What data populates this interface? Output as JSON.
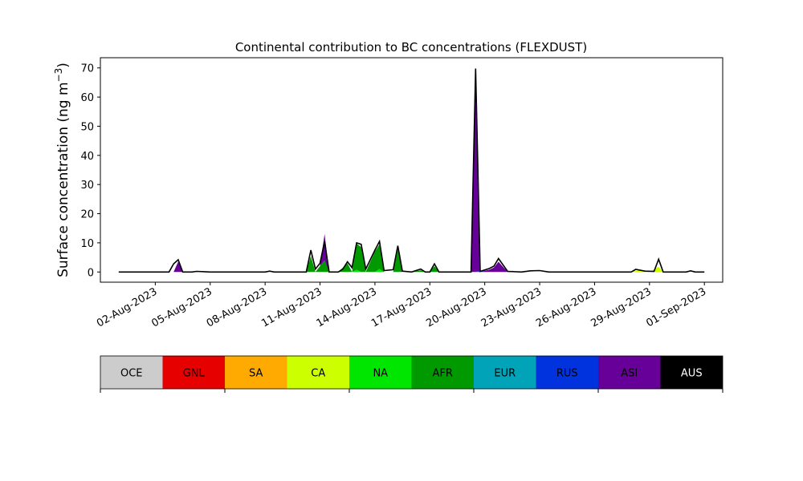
{
  "chart_data": {
    "type": "area",
    "title": "Continental contribution to BC concentrations (FLEXDUST)",
    "ylabel": "Surface concentration (ng m",
    "ylabel_unit_exponent": "−3",
    "ylabel_close": ")",
    "xlabel": "",
    "ylim": [
      -3.5,
      73.5
    ],
    "y_ticks": [
      0,
      10,
      20,
      30,
      40,
      50,
      60,
      70
    ],
    "x_range": [
      "2023-07-30",
      "2023-09-02"
    ],
    "x_ticks": [
      {
        "date": "2023-08-02",
        "label": "02-Aug-2023"
      },
      {
        "date": "2023-08-05",
        "label": "05-Aug-2023"
      },
      {
        "date": "2023-08-08",
        "label": "08-Aug-2023"
      },
      {
        "date": "2023-08-11",
        "label": "11-Aug-2023"
      },
      {
        "date": "2023-08-14",
        "label": "14-Aug-2023"
      },
      {
        "date": "2023-08-17",
        "label": "17-Aug-2023"
      },
      {
        "date": "2023-08-20",
        "label": "20-Aug-2023"
      },
      {
        "date": "2023-08-23",
        "label": "23-Aug-2023"
      },
      {
        "date": "2023-08-26",
        "label": "26-Aug-2023"
      },
      {
        "date": "2023-08-29",
        "label": "29-Aug-2023"
      },
      {
        "date": "2023-09-01",
        "label": "01-Sep-2023"
      }
    ],
    "grid": false,
    "legend": {
      "placement": "below",
      "entries": [
        {
          "name": "OCE",
          "color": "#cccccc",
          "text_color": "#000000"
        },
        {
          "name": "GNL",
          "color": "#e60000",
          "text_color": "#000000"
        },
        {
          "name": "SA",
          "color": "#ffaa00",
          "text_color": "#000000"
        },
        {
          "name": "CA",
          "color": "#ccff00",
          "text_color": "#000000"
        },
        {
          "name": "NA",
          "color": "#00e600",
          "text_color": "#000000"
        },
        {
          "name": "AFR",
          "color": "#009900",
          "text_color": "#000000"
        },
        {
          "name": "EUR",
          "color": "#00a3b8",
          "text_color": "#000000"
        },
        {
          "name": "RUS",
          "color": "#0033dd",
          "text_color": "#000000"
        },
        {
          "name": "ASI",
          "color": "#660099",
          "text_color": "#000000"
        },
        {
          "name": "AUS",
          "color": "#000000",
          "text_color": "#ffffff"
        }
      ]
    },
    "series": [
      {
        "name": "CA",
        "points": [
          [
            "2023-07-31",
            0
          ],
          [
            "2023-08-28",
            0
          ],
          [
            "2023-08-28 12:00",
            0.7
          ],
          [
            "2023-08-29",
            0
          ],
          [
            "2023-08-29 12:00",
            1.8
          ],
          [
            "2023-08-29 18:00",
            0
          ],
          [
            "2023-09-01",
            0
          ]
        ]
      },
      {
        "name": "NA",
        "points": [
          [
            "2023-07-31",
            0
          ],
          [
            "2023-08-12 18:00",
            0
          ],
          [
            "2023-08-13",
            0.8
          ],
          [
            "2023-08-13 06:00",
            0
          ],
          [
            "2023-08-14",
            0
          ],
          [
            "2023-08-14 06:00",
            1.0
          ],
          [
            "2023-08-14 12:00",
            0
          ],
          [
            "2023-09-01",
            0
          ]
        ]
      },
      {
        "name": "AFR",
        "points": [
          [
            "2023-07-31",
            0
          ],
          [
            "2023-08-10 06:00",
            0
          ],
          [
            "2023-08-10 12:00",
            5.5
          ],
          [
            "2023-08-10 18:00",
            0
          ],
          [
            "2023-08-11 06:00",
            4.0
          ],
          [
            "2023-08-11 12:00",
            0
          ],
          [
            "2023-08-12",
            0
          ],
          [
            "2023-08-12 12:00",
            3.0
          ],
          [
            "2023-08-12 18:00",
            0
          ],
          [
            "2023-08-13",
            9.0
          ],
          [
            "2023-08-13 06:00",
            8.5
          ],
          [
            "2023-08-13 12:00",
            0
          ],
          [
            "2023-08-14",
            7.0
          ],
          [
            "2023-08-14 06:00",
            8.5
          ],
          [
            "2023-08-14 12:00",
            0
          ],
          [
            "2023-08-15",
            0
          ],
          [
            "2023-08-15 06:00",
            8.0
          ],
          [
            "2023-08-15 12:00",
            0
          ],
          [
            "2023-08-16",
            0
          ],
          [
            "2023-08-16 12:00",
            0.6
          ],
          [
            "2023-08-16 18:00",
            0
          ],
          [
            "2023-08-17",
            0
          ],
          [
            "2023-08-17 06:00",
            2.0
          ],
          [
            "2023-08-17 12:00",
            0
          ],
          [
            "2023-09-01",
            0
          ]
        ]
      },
      {
        "name": "RUS",
        "points": [
          [
            "2023-07-31",
            0
          ],
          [
            "2023-08-19 12:00",
            0
          ],
          [
            "2023-08-19 18:00",
            0.4
          ],
          [
            "2023-08-20",
            0
          ],
          [
            "2023-08-21 06:00",
            0
          ],
          [
            "2023-08-21 12:00",
            0.4
          ],
          [
            "2023-08-21 18:00",
            0
          ],
          [
            "2023-09-01",
            0
          ]
        ]
      },
      {
        "name": "ASI",
        "points": [
          [
            "2023-07-31",
            0
          ],
          [
            "2023-08-03",
            0
          ],
          [
            "2023-08-03 06:00",
            3.5
          ],
          [
            "2023-08-03 12:00",
            0
          ],
          [
            "2023-08-11",
            0
          ],
          [
            "2023-08-11 06:00",
            9.0
          ],
          [
            "2023-08-11 12:00",
            0
          ],
          [
            "2023-08-19 06:00",
            0
          ],
          [
            "2023-08-19 12:00",
            69.0
          ],
          [
            "2023-08-19 18:00",
            0
          ],
          [
            "2023-08-20 06:00",
            0.8
          ],
          [
            "2023-08-20 12:00",
            1.5
          ],
          [
            "2023-08-20 18:00",
            3.5
          ],
          [
            "2023-08-21 06:00",
            0
          ],
          [
            "2023-09-01",
            0
          ]
        ]
      },
      {
        "name": "AUS",
        "points": [
          [
            "2023-07-31",
            0
          ],
          [
            "2023-09-01",
            0
          ]
        ]
      }
    ],
    "total_outline": [
      [
        "2023-07-31",
        0
      ],
      [
        "2023-08-02 18:00",
        0
      ],
      [
        "2023-08-03",
        2.8
      ],
      [
        "2023-08-03 06:00",
        4.2
      ],
      [
        "2023-08-03 12:00",
        0
      ],
      [
        "2023-08-04",
        0
      ],
      [
        "2023-08-04 06:00",
        0.2
      ],
      [
        "2023-08-05",
        0
      ],
      [
        "2023-08-08",
        0
      ],
      [
        "2023-08-08 06:00",
        0.3
      ],
      [
        "2023-08-08 12:00",
        0
      ],
      [
        "2023-08-10 06:00",
        0
      ],
      [
        "2023-08-10 12:00",
        7.5
      ],
      [
        "2023-08-10 18:00",
        1.0
      ],
      [
        "2023-08-11",
        3.0
      ],
      [
        "2023-08-11 06:00",
        10.5
      ],
      [
        "2023-08-11 12:00",
        0
      ],
      [
        "2023-08-12",
        0
      ],
      [
        "2023-08-12 06:00",
        1.0
      ],
      [
        "2023-08-12 12:00",
        3.5
      ],
      [
        "2023-08-12 18:00",
        1.5
      ],
      [
        "2023-08-13",
        10.0
      ],
      [
        "2023-08-13 06:00",
        9.5
      ],
      [
        "2023-08-13 12:00",
        1.0
      ],
      [
        "2023-08-14",
        7.5
      ],
      [
        "2023-08-14 06:00",
        10.5
      ],
      [
        "2023-08-14 12:00",
        0.5
      ],
      [
        "2023-08-15",
        0.8
      ],
      [
        "2023-08-15 06:00",
        9.0
      ],
      [
        "2023-08-15 12:00",
        0.3
      ],
      [
        "2023-08-16",
        0
      ],
      [
        "2023-08-16 12:00",
        1.0
      ],
      [
        "2023-08-16 18:00",
        0
      ],
      [
        "2023-08-17",
        0
      ],
      [
        "2023-08-17 06:00",
        2.8
      ],
      [
        "2023-08-17 12:00",
        0
      ],
      [
        "2023-08-19 06:00",
        0
      ],
      [
        "2023-08-19 12:00",
        69.8
      ],
      [
        "2023-08-19 18:00",
        0.2
      ],
      [
        "2023-08-20 06:00",
        1.2
      ],
      [
        "2023-08-20 12:00",
        2.0
      ],
      [
        "2023-08-20 18:00",
        4.6
      ],
      [
        "2023-08-21 06:00",
        0.2
      ],
      [
        "2023-08-22",
        0
      ],
      [
        "2023-08-22 12:00",
        0.4
      ],
      [
        "2023-08-23",
        0.5
      ],
      [
        "2023-08-23 12:00",
        0
      ],
      [
        "2023-08-28",
        0
      ],
      [
        "2023-08-28 06:00",
        0.9
      ],
      [
        "2023-08-28 18:00",
        0.3
      ],
      [
        "2023-08-29 06:00",
        0.2
      ],
      [
        "2023-08-29 12:00",
        4.4
      ],
      [
        "2023-08-29 18:00",
        0
      ],
      [
        "2023-08-31",
        0
      ],
      [
        "2023-08-31 06:00",
        0.4
      ],
      [
        "2023-08-31 12:00",
        0
      ],
      [
        "2023-09-01",
        0
      ]
    ]
  }
}
